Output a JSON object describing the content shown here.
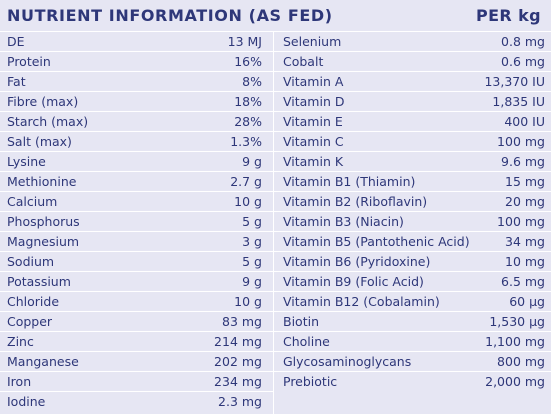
{
  "header": {
    "title": "NUTRIENT INFORMATION (AS FED)",
    "unit": "PER kg"
  },
  "table": {
    "left": [
      [
        "DE",
        "13 MJ"
      ],
      [
        "Protein",
        "16%"
      ],
      [
        "Fat",
        "8%"
      ],
      [
        "Fibre (max)",
        "18%"
      ],
      [
        "Starch (max)",
        "28%"
      ],
      [
        "Salt (max)",
        "1.3%"
      ],
      [
        "Lysine",
        "9 g"
      ],
      [
        "Methionine",
        "2.7 g"
      ],
      [
        "Calcium",
        "10 g"
      ],
      [
        "Phosphorus",
        "5 g"
      ],
      [
        "Magnesium",
        "3 g"
      ],
      [
        "Sodium",
        "5 g"
      ],
      [
        "Potassium",
        "9 g"
      ],
      [
        "Chloride",
        "10 g"
      ],
      [
        "Copper",
        "83 mg"
      ],
      [
        "Zinc",
        "214 mg"
      ],
      [
        "Manganese",
        "202 mg"
      ],
      [
        "Iron",
        "234 mg"
      ],
      [
        "Iodine",
        "2.3 mg"
      ]
    ],
    "right": [
      [
        "Selenium",
        "0.8 mg"
      ],
      [
        "Cobalt",
        "0.6 mg"
      ],
      [
        "Vitamin A",
        "13,370 IU"
      ],
      [
        "Vitamin D",
        "1,835 IU"
      ],
      [
        "Vitamin E",
        "400 IU"
      ],
      [
        "Vitamin C",
        "100 mg"
      ],
      [
        "Vitamin K",
        "9.6 mg"
      ],
      [
        "Vitamin B1 (Thiamin)",
        "15 mg"
      ],
      [
        "Vitamin B2 (Riboflavin)",
        "20 mg"
      ],
      [
        "Vitamin B3 (Niacin)",
        "100 mg"
      ],
      [
        "Vitamin B5 (Pantothenic Acid)",
        "34 mg"
      ],
      [
        "Vitamin B6 (Pyridoxine)",
        "10 mg"
      ],
      [
        "Vitamin B9 (Folic Acid)",
        "6.5 mg"
      ],
      [
        "Vitamin B12 (Cobalamin)",
        "60 µg"
      ],
      [
        "Biotin",
        "1,530 µg"
      ],
      [
        "Choline",
        "1,100 mg"
      ],
      [
        "Glycosaminoglycans",
        "800 mg"
      ],
      [
        "Prebiotic",
        "2,000 mg"
      ]
    ]
  }
}
